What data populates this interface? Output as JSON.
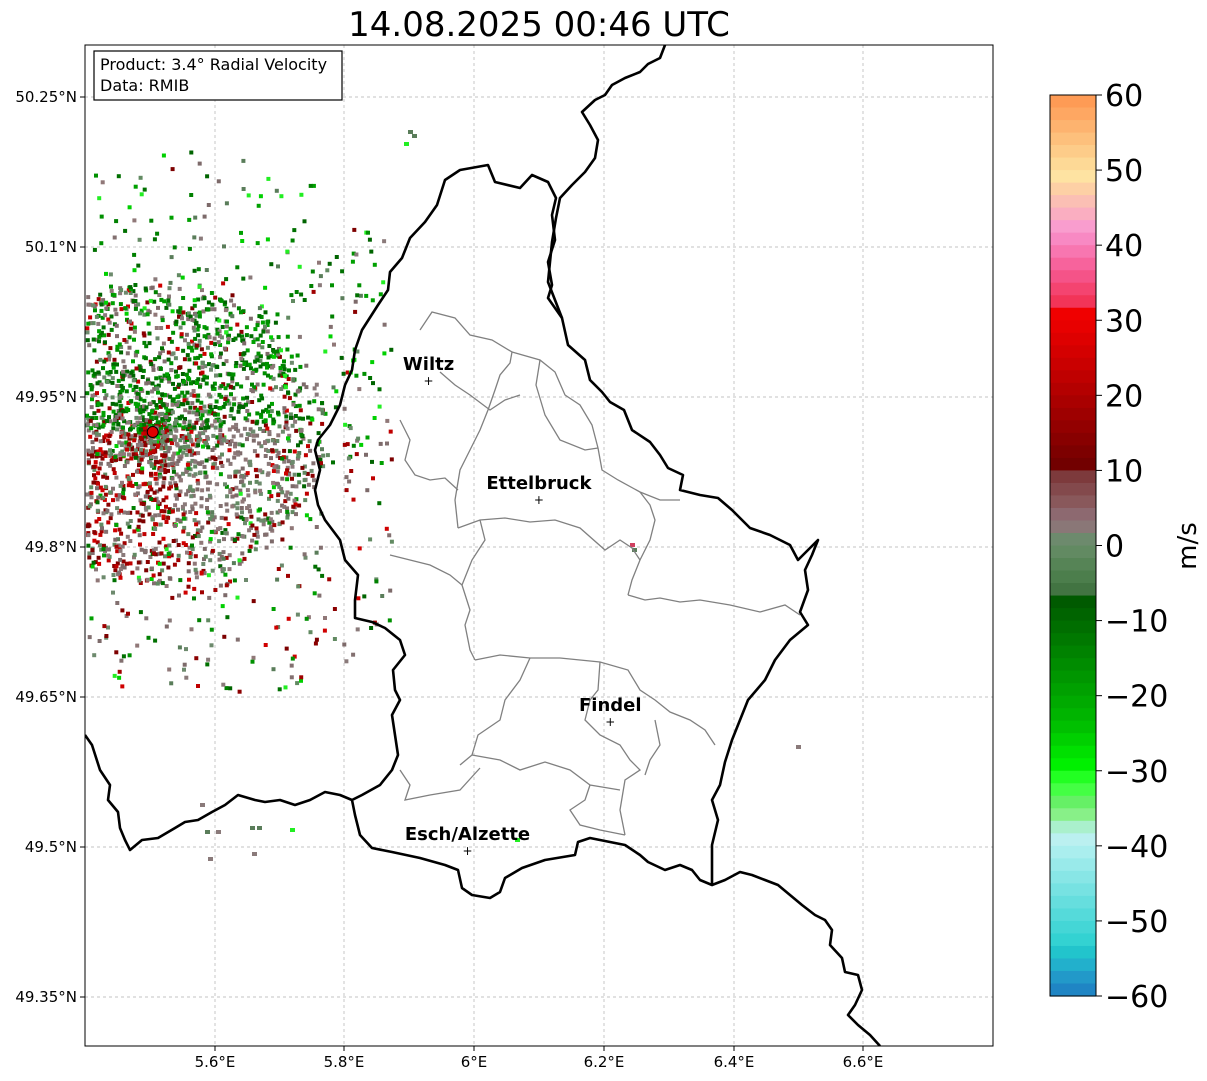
{
  "title": "14.08.2025 00:46 UTC",
  "info_box": {
    "line1": "Product: 3.4° Radial Velocity",
    "line2": "Data: RMIB"
  },
  "map": {
    "lat_ticks": [
      "50.25°N",
      "50.1°N",
      "49.95°N",
      "49.8°N",
      "49.65°N",
      "49.5°N",
      "49.35°N"
    ],
    "lon_ticks": [
      "5.6°E",
      "5.8°E",
      "6°E",
      "6.2°E",
      "6.4°E",
      "6.6°E"
    ],
    "cities": [
      {
        "name": "Wiltz",
        "lon": 5.93,
        "lat": 49.967
      },
      {
        "name": "Ettelbruck",
        "lon": 6.1,
        "lat": 49.848
      },
      {
        "name": "Findel",
        "lon": 6.21,
        "lat": 49.626
      },
      {
        "name": "Esch/Alzette",
        "lon": 5.99,
        "lat": 49.497
      }
    ],
    "radar_site": {
      "lon": 5.505,
      "lat": 49.915
    },
    "colors": {
      "border": "#000000",
      "district_lines": "#808080",
      "gridlines": "#b0b0b0",
      "radar_marker": "#e00000"
    }
  },
  "colorbar": {
    "label": "m/s",
    "ticks": [
      "60",
      "50",
      "40",
      "30",
      "20",
      "10",
      "0",
      "−10",
      "−20",
      "−30",
      "−40",
      "−50",
      "−60"
    ],
    "min": -60,
    "max": 60,
    "colors_top_to_bottom": [
      "#fe9b55",
      "#fea762",
      "#fdb36f",
      "#fdc07c",
      "#fdcc89",
      "#fdd996",
      "#fee3a2",
      "#fdd0a5",
      "#fbbfb4",
      "#faaec1",
      "#f99dce",
      "#f889c3",
      "#f876b0",
      "#f7639c",
      "#f55388",
      "#f44470",
      "#f23458",
      "#f00000",
      "#e80000",
      "#de0000",
      "#d40000",
      "#ca0000",
      "#bf0000",
      "#b40000",
      "#a90000",
      "#9e0000",
      "#930000",
      "#880000",
      "#7d0000",
      "#720000",
      "#7d3a3c",
      "#83494c",
      "#89585b",
      "#8d6970",
      "#8a7777",
      "#6d8a6d",
      "#628a62",
      "#568456",
      "#4c7e4c",
      "#427442",
      "#005a00",
      "#006400",
      "#006e00",
      "#007800",
      "#008200",
      "#008c00",
      "#009600",
      "#00a000",
      "#00aa00",
      "#00b400",
      "#00c000",
      "#00d000",
      "#00e000",
      "#00f000",
      "#22ff22",
      "#44ff44",
      "#66f066",
      "#88f088",
      "#aaf0cc",
      "#bbf0f0",
      "#aaeeee",
      "#99eaea",
      "#88e6e6",
      "#77e2e2",
      "#66dede",
      "#55dada",
      "#44d6d6",
      "#33d2d2",
      "#22c4cc",
      "#22b0cc",
      "#2299c9",
      "#1f85c4"
    ]
  },
  "radar_echoes": {
    "description_colors": {
      "outbound": "#a00000",
      "inbound": "#00a000",
      "near_zero": "#8a7a7a",
      "near_zero_neg": "#6d8a6d"
    }
  }
}
